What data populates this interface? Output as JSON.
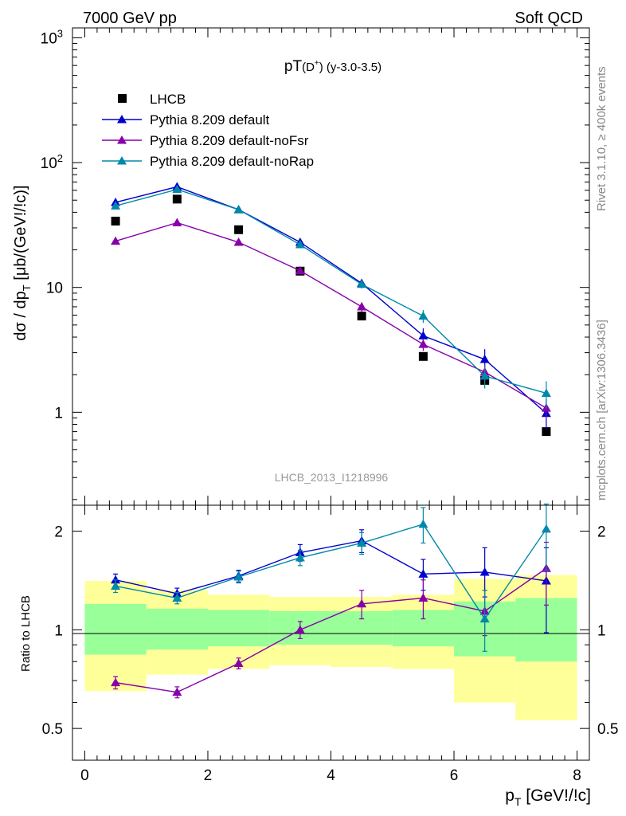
{
  "header": {
    "energy_label": "7000 GeV pp",
    "process_label": "Soft QCD",
    "rivet_label": "Rivet 3.1.10, ≥ 400k events",
    "source_label": "mcplots.cern.ch [arXiv:1306.3436]",
    "analysis_label": "LHCB_2013_I1218996"
  },
  "chart_data": [
    {
      "type": "scatter",
      "panel": "main",
      "title": "pT(D⁺) (y-3.0-3.5)",
      "title_main": "pT",
      "title_particle": "(D",
      "title_sup": "+",
      "title_close": ")",
      "title_range": " (y-3.0-3.5)",
      "ylabel_main": "dσ / dp",
      "ylabel_sub": "T",
      "ylabel_tail": " [μb/(GeV!/!c)]",
      "yscale": "log",
      "ylim": [
        0.18,
        1200
      ],
      "xlim": [
        -0.2,
        8.2
      ],
      "ytick_labels": [
        {
          "value": 1,
          "label": "1"
        },
        {
          "value": 10,
          "label": "10"
        },
        {
          "value": 100,
          "label": "10",
          "sup": "2"
        },
        {
          "value": 1000,
          "label": "10",
          "sup": "3"
        }
      ],
      "series": [
        {
          "name": "LHCB",
          "color": "#000000",
          "marker": "square",
          "x": [
            0.5,
            1.5,
            2.5,
            3.5,
            4.5,
            5.5,
            6.5,
            7.5
          ],
          "y": [
            34,
            51,
            29,
            13.5,
            5.9,
            2.8,
            1.8,
            0.7
          ]
        },
        {
          "name": "Pythia 8.209 default",
          "color": "#0000cc",
          "marker": "triangle",
          "x": [
            0.5,
            1.5,
            2.5,
            3.5,
            4.5,
            5.5,
            6.5,
            7.5
          ],
          "y": [
            48,
            64,
            42,
            23,
            10.8,
            4.1,
            2.65,
            0.98
          ],
          "err": [
            2,
            2.5,
            1.5,
            1,
            0.8,
            0.6,
            0.55,
            0.25
          ]
        },
        {
          "name": "Pythia 8.209 default-noFsr",
          "color": "#8800aa",
          "marker": "triangle",
          "x": [
            0.5,
            1.5,
            2.5,
            3.5,
            4.5,
            5.5,
            6.5,
            7.5
          ],
          "y": [
            23.5,
            33,
            23,
            13.6,
            7,
            3.5,
            2.1,
            1.08
          ],
          "err": [
            1,
            1.3,
            1,
            0.6,
            0.6,
            0.4,
            0.35,
            0.2
          ]
        },
        {
          "name": "Pythia 8.209 default-noRap",
          "color": "#0088aa",
          "marker": "triangle",
          "x": [
            0.5,
            1.5,
            2.5,
            3.5,
            4.5,
            5.5,
            6.5,
            7.5
          ],
          "y": [
            45,
            61,
            42,
            22,
            10.6,
            5.9,
            1.95,
            1.42
          ],
          "err": [
            2,
            2.5,
            1.5,
            1,
            0.8,
            0.7,
            0.4,
            0.35
          ]
        }
      ]
    },
    {
      "type": "scatter",
      "panel": "ratio",
      "ylabel": "Ratio to LHCB",
      "yscale": "log",
      "ylim": [
        0.4,
        2.4
      ],
      "xlim": [
        -0.2,
        8.2
      ],
      "xlabel_main": "p",
      "xlabel_sub": "T",
      "xlabel_tail": " [GeV!/!c]",
      "xtick_labels": [
        {
          "value": 0,
          "label": "0"
        },
        {
          "value": 2,
          "label": "2"
        },
        {
          "value": 4,
          "label": "4"
        },
        {
          "value": 6,
          "label": "6"
        },
        {
          "value": 8,
          "label": "8"
        }
      ],
      "ytick_labels": [
        {
          "value": 0.5,
          "label": "0.5"
        },
        {
          "value": 1,
          "label": "1"
        },
        {
          "value": 2,
          "label": "2"
        }
      ],
      "bands": {
        "x_edges": [
          0,
          1,
          2,
          3,
          4,
          5,
          6,
          7,
          8
        ],
        "outer_color": "#ffff99",
        "inner_color": "#99ff99",
        "outer_low": [
          0.65,
          0.73,
          0.76,
          0.78,
          0.77,
          0.76,
          0.6,
          0.53
        ],
        "outer_high": [
          1.41,
          1.32,
          1.28,
          1.26,
          1.26,
          1.28,
          1.43,
          1.47
        ],
        "inner_low": [
          0.84,
          0.87,
          0.89,
          0.9,
          0.9,
          0.89,
          0.83,
          0.8
        ],
        "inner_high": [
          1.2,
          1.16,
          1.15,
          1.14,
          1.14,
          1.15,
          1.22,
          1.25
        ]
      },
      "series": [
        {
          "name": "Pythia 8.209 default",
          "color": "#0000cc",
          "x": [
            0.5,
            1.5,
            2.5,
            3.5,
            4.5,
            5.5,
            6.5,
            7.5
          ],
          "y": [
            1.42,
            1.29,
            1.46,
            1.72,
            1.87,
            1.48,
            1.5,
            1.41
          ],
          "lo": [
            1.36,
            1.24,
            1.4,
            1.62,
            1.72,
            1.32,
            1.26,
            0.98
          ],
          "hi": [
            1.48,
            1.34,
            1.52,
            1.82,
            2.02,
            1.64,
            1.78,
            1.78
          ]
        },
        {
          "name": "Pythia 8.209 default-noFsr",
          "color": "#8800aa",
          "x": [
            0.5,
            1.5,
            2.5,
            3.5,
            4.5,
            5.5,
            6.5,
            7.5
          ],
          "y": [
            0.69,
            0.645,
            0.79,
            1.0,
            1.2,
            1.25,
            1.14,
            1.54
          ],
          "lo": [
            0.66,
            0.62,
            0.76,
            0.94,
            1.08,
            1.08,
            0.96,
            1.19
          ],
          "hi": [
            0.72,
            0.67,
            0.82,
            1.06,
            1.32,
            1.42,
            1.32,
            1.85
          ]
        },
        {
          "name": "Pythia 8.209 default-noRap",
          "color": "#0088aa",
          "x": [
            0.5,
            1.5,
            2.5,
            3.5,
            4.5,
            5.5,
            6.5,
            7.5
          ],
          "y": [
            1.36,
            1.25,
            1.45,
            1.66,
            1.84,
            2.1,
            1.08,
            2.03
          ],
          "lo": [
            1.3,
            1.2,
            1.39,
            1.57,
            1.7,
            1.84,
            0.86,
            1.52
          ],
          "hi": [
            1.42,
            1.3,
            1.51,
            1.75,
            1.98,
            2.36,
            1.32,
            2.42
          ]
        }
      ]
    }
  ]
}
